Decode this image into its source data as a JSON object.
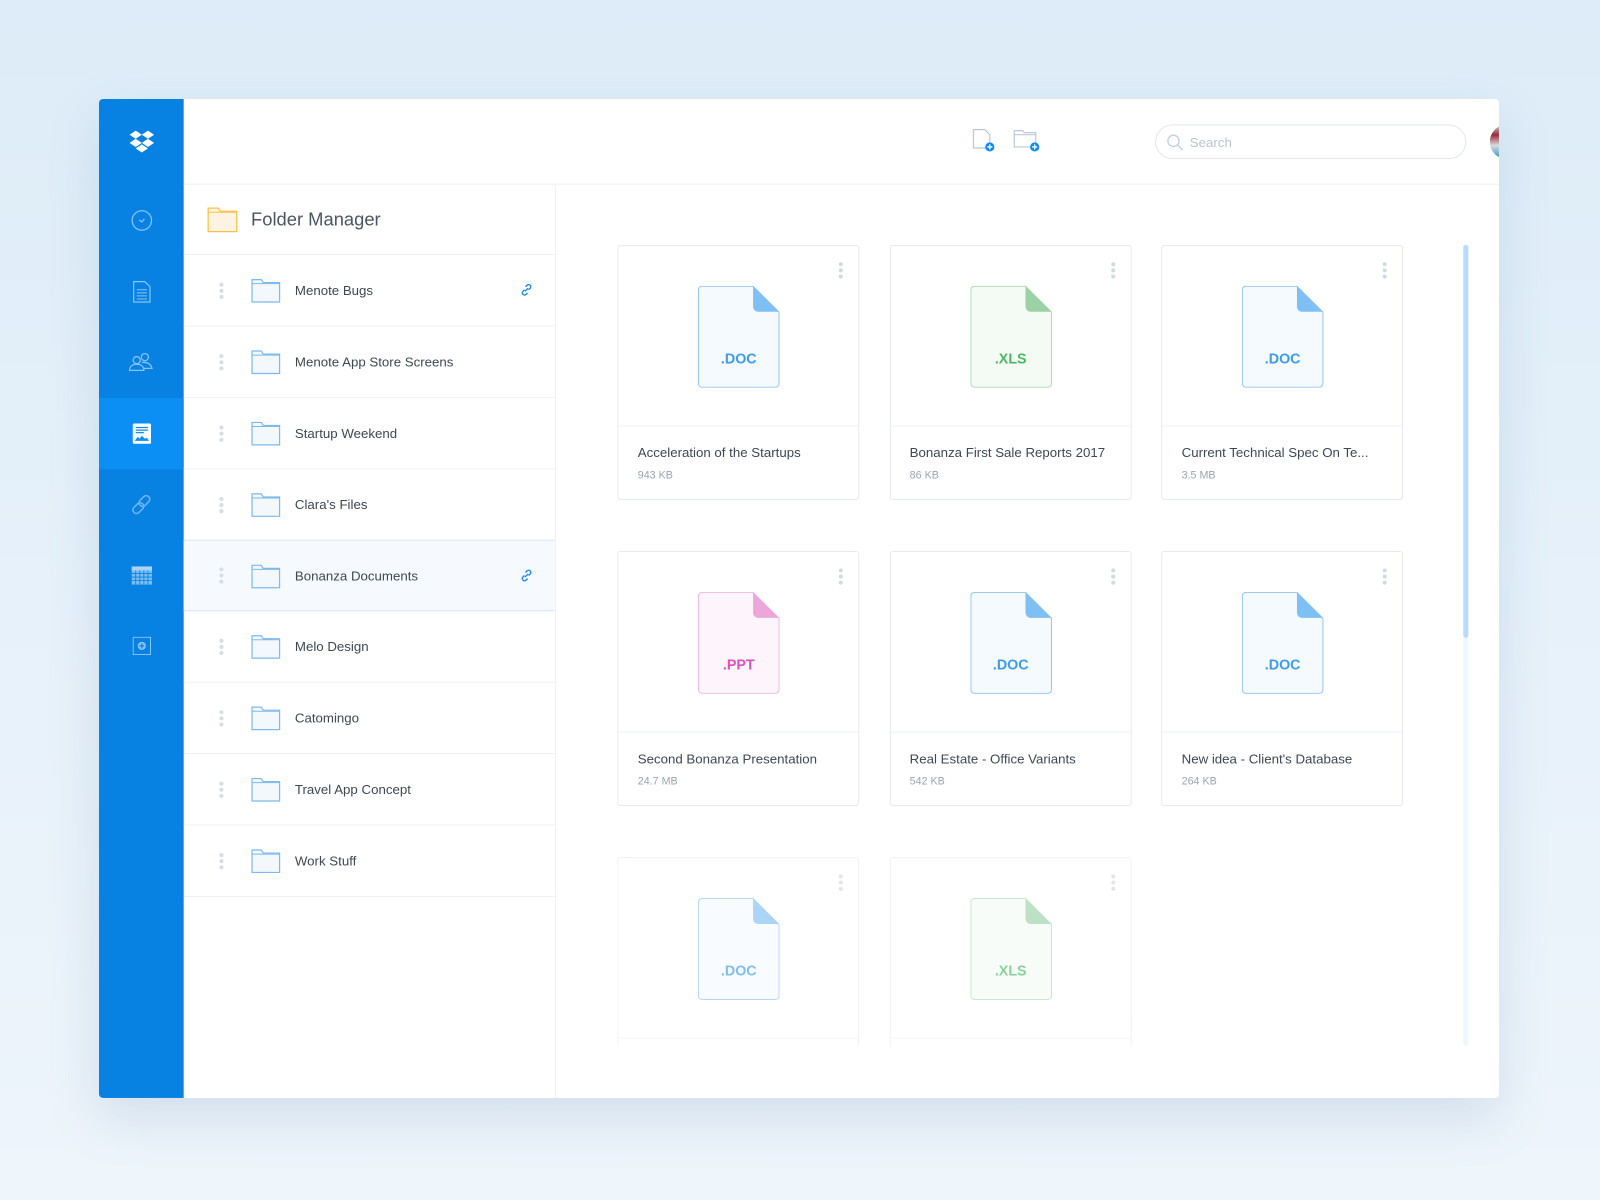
{
  "colors": {
    "brand": "#0781e2",
    "active": "#0b8ff4",
    "doc": "#4ba3ef",
    "xls": "#5cbf74",
    "ppt": "#e066c2",
    "folder_header": "#ffbf4d"
  },
  "sidebar": {
    "items": [
      {
        "icon": "dropbox-logo"
      },
      {
        "icon": "clock-icon"
      },
      {
        "icon": "document-icon"
      },
      {
        "icon": "users-icon"
      },
      {
        "icon": "gallery-icon",
        "active": true
      },
      {
        "icon": "link-icon"
      },
      {
        "icon": "calendar-icon"
      },
      {
        "icon": "add-box-icon"
      }
    ]
  },
  "header": {
    "new_file_icon": "new-file-icon",
    "new_folder_icon": "new-folder-icon",
    "search_placeholder": "Search"
  },
  "folders": {
    "title": "Folder Manager",
    "items": [
      {
        "name": "Menote Bugs",
        "shared": true
      },
      {
        "name": "Menote App Store Screens"
      },
      {
        "name": "Startup Weekend"
      },
      {
        "name": "Clara's Files"
      },
      {
        "name": "Bonanza Documents",
        "shared": true,
        "selected": true
      },
      {
        "name": "Melo Design"
      },
      {
        "name": "Catomingo"
      },
      {
        "name": "Travel App Concept"
      },
      {
        "name": "Work Stuff"
      }
    ]
  },
  "files": [
    {
      "ext": ".DOC",
      "type": "doc",
      "name": "Acceleration of the Startups",
      "size": "943 KB"
    },
    {
      "ext": ".XLS",
      "type": "xls",
      "name": "Bonanza First Sale Reports 2017",
      "size": "86 KB"
    },
    {
      "ext": ".DOC",
      "type": "doc",
      "name": "Current Technical Spec On Te...",
      "size": "3.5 MB"
    },
    {
      "ext": ".PPT",
      "type": "ppt",
      "name": "Second Bonanza Presentation",
      "size": "24.7 MB"
    },
    {
      "ext": ".DOC",
      "type": "doc",
      "name": "Real Estate - Office Variants",
      "size": "542 KB"
    },
    {
      "ext": ".DOC",
      "type": "doc",
      "name": "New idea - Client's Database",
      "size": "264 KB"
    },
    {
      "ext": ".DOC",
      "type": "doc"
    },
    {
      "ext": ".XLS",
      "type": "xls"
    }
  ],
  "scroll": {
    "position": 0,
    "visible_fraction": 0.49
  }
}
